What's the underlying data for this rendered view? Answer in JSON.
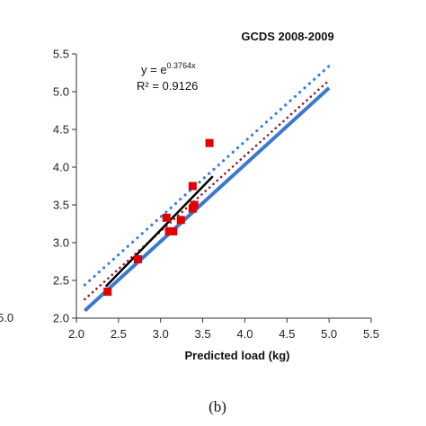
{
  "left_fragment": "5.0",
  "caption": "(b)",
  "chart_data": {
    "type": "scatter",
    "title": "GCDS 2008-2009",
    "xlabel": "Predicted load (kg)",
    "ylabel": "",
    "xlim": [
      2.0,
      5.5
    ],
    "ylim": [
      2.0,
      5.5
    ],
    "xticks": [
      "2.0",
      "2.5",
      "3.0",
      "3.5",
      "4.0",
      "4.5",
      "5.0",
      "5.5"
    ],
    "yticks": [
      "2.0",
      "2.5",
      "3.0",
      "3.5",
      "4.0",
      "4.5",
      "5.0",
      "5.5"
    ],
    "equation_base": "y = e",
    "equation_exponent": "0.3764x",
    "r_squared": "R² = 0.9126",
    "points": [
      {
        "x": 2.37,
        "y": 2.35
      },
      {
        "x": 2.73,
        "y": 2.78
      },
      {
        "x": 3.07,
        "y": 3.33
      },
      {
        "x": 3.1,
        "y": 3.15
      },
      {
        "x": 3.15,
        "y": 3.15
      },
      {
        "x": 3.24,
        "y": 3.3
      },
      {
        "x": 3.38,
        "y": 3.75
      },
      {
        "x": 3.38,
        "y": 3.45
      },
      {
        "x": 3.4,
        "y": 3.5
      },
      {
        "x": 3.58,
        "y": 4.32
      }
    ],
    "lines": [
      {
        "style": "solid",
        "color": "#3b78d0",
        "width": 4,
        "x": [
          2.1,
          5.0
        ],
        "y": [
          2.1,
          5.05
        ]
      },
      {
        "style": "dotted",
        "color": "#3c7fd6",
        "width": 3.2,
        "x": [
          2.1,
          5.0
        ],
        "y": [
          2.44,
          5.34
        ]
      },
      {
        "style": "dotted",
        "color": "#8a1f2e",
        "width": 2.6,
        "x": [
          2.1,
          5.0
        ],
        "y": [
          2.25,
          5.15
        ]
      },
      {
        "style": "solid",
        "color": "#000000",
        "width": 2.5,
        "x": [
          2.35,
          3.62
        ],
        "y": [
          2.42,
          3.88
        ]
      }
    ],
    "marker_color": "#e00000",
    "grid": false
  }
}
